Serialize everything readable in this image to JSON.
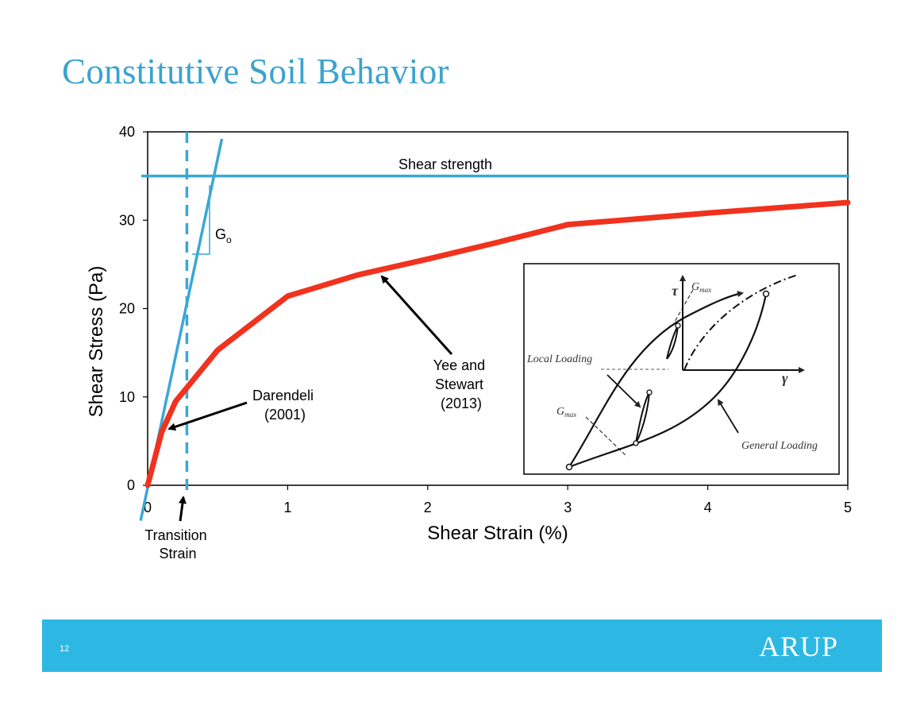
{
  "slide": {
    "title": "Constitutive Soil Behavior",
    "page_number": "12",
    "logo": "ARUP",
    "colors": {
      "title": "#3aa3cf",
      "footer": "#2db8e3",
      "blue_line": "#3aa7d6",
      "red_curve": "#f0321e"
    }
  },
  "chart_data": {
    "type": "line",
    "xlabel": "Shear Strain (%)",
    "ylabel": "Shear Stress (Pa)",
    "xlim": [
      0,
      5
    ],
    "ylim": [
      0,
      40
    ],
    "x_ticks": [
      0,
      1,
      2,
      3,
      4,
      5
    ],
    "y_ticks": [
      0,
      10,
      20,
      30,
      40
    ],
    "grid": false,
    "series": [
      {
        "color": "#f0321e",
        "x": [
          0,
          0.05,
          0.1,
          0.2,
          0.5,
          1.0,
          1.5,
          2.0,
          2.5,
          3.0,
          4.0,
          5.0
        ],
        "y": [
          0,
          3,
          6,
          9.5,
          15.3,
          21.4,
          23.8,
          25.6,
          27.5,
          29.5,
          30.8,
          32.0
        ]
      }
    ],
    "shear_strength": {
      "y": 35,
      "label": "Shear strength"
    },
    "initial_tangent": {
      "x": [
        -0.05,
        0.53
      ],
      "y": [
        -4,
        39.2
      ],
      "label": "G",
      "label_sub": "o"
    },
    "transition_strain": {
      "x": 0.28,
      "label_line1": "Transition",
      "label_line2": "Strain"
    },
    "annotations": {
      "darendeli": [
        "Darendeli",
        "(2001)"
      ],
      "yee_stewart": [
        "Yee and",
        "Stewart",
        "(2013)"
      ]
    },
    "inset": {
      "tau_label": "τ",
      "gamma_label": "γ",
      "gmax_top": "G",
      "gmax_top_sub": "max",
      "gmax_bottom": "G",
      "gmax_bottom_sub": "max",
      "local_loading": "Local Loading",
      "general_loading": "General Loading"
    }
  }
}
